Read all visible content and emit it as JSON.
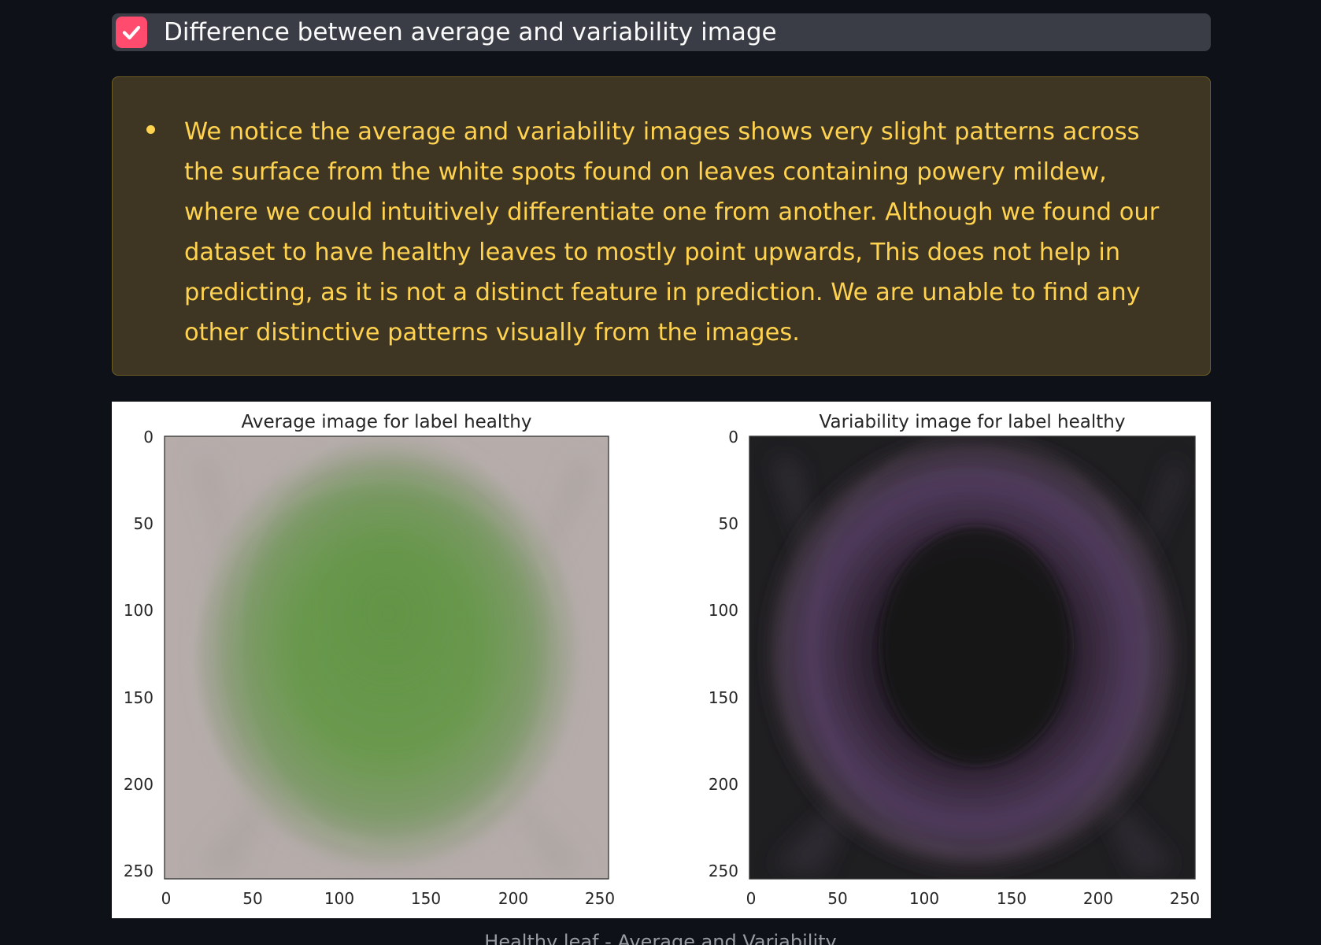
{
  "checkbox": {
    "label": "Difference between average and variability image",
    "checked": true,
    "color": "#ff4b6e"
  },
  "alert": {
    "text": "We notice the average and variability images shows very slight patterns across the surface from the white spots found on leaves containing powery mildew, where we could intuitively differentiate one from another. Although we found our dataset to have healthy leaves to mostly point upwards, This does not help in predicting, as it is not a distinct feature in prediction. We are unable to find any other distinctive patterns visually from the images.",
    "text_color": "#ffd250",
    "background": "#3e3623"
  },
  "figure": {
    "caption": "Healthy leaf - Average and Variability",
    "panels": [
      {
        "title": "Average image for label healthy",
        "x_ticks": [
          "0",
          "50",
          "100",
          "150",
          "200",
          "250"
        ],
        "y_ticks": [
          "0",
          "50",
          "100",
          "150",
          "200",
          "250"
        ]
      },
      {
        "title": "Variability image for label healthy",
        "x_ticks": [
          "0",
          "50",
          "100",
          "150",
          "200",
          "250"
        ],
        "y_ticks": [
          "0",
          "50",
          "100",
          "150",
          "200",
          "250"
        ]
      }
    ]
  }
}
